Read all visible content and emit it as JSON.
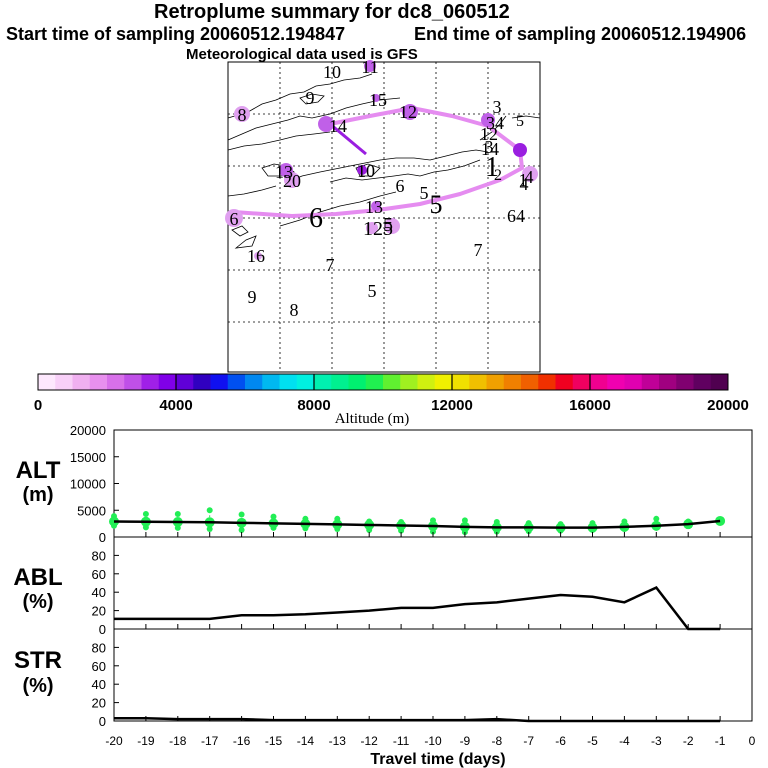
{
  "header": {
    "title": "Retroplume summary for dc8_060512",
    "start_time": "Start time of sampling 20060512.194847",
    "end_time": "End time of sampling 20060512.194906",
    "met_data": "Meteorological data used is GFS"
  },
  "colors": {
    "plume_line": "#e58cf0",
    "plume_dot_light": "#e0a0f0",
    "plume_dot_mid": "#c060e8",
    "plume_dot_dark": "#9a1ee0",
    "alt_points": "#22ee55",
    "series_line": "#000000",
    "map_lines": "#000000"
  },
  "colorbar": {
    "ticks": [
      "0",
      "4000",
      "8000",
      "12000",
      "16000",
      "20000"
    ],
    "tick_values": [
      0,
      4000,
      8000,
      12000,
      16000,
      20000
    ],
    "label": "Altitude (m)",
    "swatches": [
      "#fde8fd",
      "#f8d0f8",
      "#f0b0f0",
      "#e890ee",
      "#d870ea",
      "#c050e8",
      "#a020e8",
      "#8000e8",
      "#6000d8",
      "#3000c0",
      "#1010f0",
      "#0050f0",
      "#0088f0",
      "#00b8f0",
      "#00e0f0",
      "#00f0e0",
      "#00f0b0",
      "#00f090",
      "#00f070",
      "#20f050",
      "#60f030",
      "#a0f020",
      "#d0f010",
      "#f0f000",
      "#f0e000",
      "#f0c000",
      "#f0a000",
      "#f08000",
      "#f06000",
      "#f03000",
      "#f00020",
      "#f00060",
      "#f00090",
      "#f000b0",
      "#e000b0",
      "#c00098",
      "#a00080",
      "#800070",
      "#600060",
      "#500050"
    ]
  },
  "map": {
    "day_labels": [
      {
        "text": "10"
      },
      {
        "text": "11"
      },
      {
        "text": "9"
      },
      {
        "text": "8"
      },
      {
        "text": "15"
      },
      {
        "text": "12"
      },
      {
        "text": "14"
      },
      {
        "text": "3"
      },
      {
        "text": "34"
      },
      {
        "text": "5"
      },
      {
        "text": "12"
      },
      {
        "text": "14"
      },
      {
        "text": "3"
      },
      {
        "text": "2"
      },
      {
        "text": "1"
      },
      {
        "text": "1"
      },
      {
        "text": "13"
      },
      {
        "text": "20"
      },
      {
        "text": "10"
      },
      {
        "text": "6"
      },
      {
        "text": "5"
      },
      {
        "text": "4"
      },
      {
        "text": "4"
      },
      {
        "text": "5"
      },
      {
        "text": "13"
      },
      {
        "text": "5"
      },
      {
        "text": "6"
      },
      {
        "text": "6"
      },
      {
        "text": "64"
      },
      {
        "text": "125"
      },
      {
        "text": "7"
      },
      {
        "text": "16"
      },
      {
        "text": "7"
      },
      {
        "text": "9"
      },
      {
        "text": "8"
      },
      {
        "text": "5"
      }
    ]
  },
  "chart_data": [
    {
      "type": "scatter",
      "title": "ALT (m)",
      "ylabel": "ALT (m)",
      "ylim": [
        0,
        20000
      ],
      "yticks": [
        "0",
        "5000",
        "10000",
        "15000",
        "20000"
      ],
      "ytick_values": [
        0,
        5000,
        10000,
        15000,
        20000
      ],
      "x": [
        -20,
        -19,
        -18,
        -17,
        -16,
        -15,
        -14,
        -13,
        -12,
        -11,
        -10,
        -9,
        -8,
        -7,
        -6,
        -5,
        -4,
        -3,
        -2,
        -1
      ],
      "median": [
        2900,
        2850,
        2800,
        2750,
        2650,
        2550,
        2450,
        2350,
        2250,
        2150,
        2050,
        1900,
        1800,
        1800,
        1750,
        1750,
        1900,
        2100,
        2400,
        3000
      ],
      "low": [
        2100,
        1800,
        1700,
        1500,
        1300,
        1700,
        1600,
        1500,
        1300,
        1200,
        1000,
        900,
        1000,
        1100,
        1200,
        1300,
        1500,
        1700,
        2100,
        2700
      ],
      "high": [
        3900,
        4300,
        4300,
        5000,
        4200,
        3800,
        3400,
        3400,
        2900,
        2800,
        3100,
        3100,
        2800,
        2600,
        2400,
        2600,
        2900,
        3400,
        2900,
        3200
      ]
    },
    {
      "type": "line",
      "title": "ABL (%)",
      "ylabel": "ABL (%)",
      "ylim": [
        0,
        100
      ],
      "yticks": [
        "0",
        "20",
        "40",
        "60",
        "80"
      ],
      "ytick_values": [
        0,
        20,
        40,
        60,
        80
      ],
      "x": [
        -20,
        -19,
        -18,
        -17,
        -16,
        -15,
        -14,
        -13,
        -12,
        -11,
        -10,
        -9,
        -8,
        -7,
        -6,
        -5,
        -4,
        -3,
        -2,
        -1
      ],
      "values": [
        11,
        11,
        11,
        11,
        15,
        15,
        16,
        18,
        20,
        23,
        23,
        27,
        29,
        33,
        37,
        35,
        29,
        45,
        0,
        0
      ]
    },
    {
      "type": "line",
      "title": "STR (%)",
      "ylabel": "STR (%)",
      "ylim": [
        0,
        100
      ],
      "yticks": [
        "0",
        "20",
        "40",
        "60",
        "80"
      ],
      "ytick_values": [
        0,
        20,
        40,
        60,
        80
      ],
      "xlabel": "Travel time (days)",
      "xlim": [
        -20,
        0
      ],
      "xticks": [
        "-20",
        "-19",
        "-18",
        "-17",
        "-16",
        "-15",
        "-14",
        "-13",
        "-12",
        "-11",
        "-10",
        "-9",
        "-8",
        "-7",
        "-6",
        "-5",
        "-4",
        "-3",
        "-2",
        "-1",
        "0"
      ],
      "xtick_values": [
        -20,
        -19,
        -18,
        -17,
        -16,
        -15,
        -14,
        -13,
        -12,
        -11,
        -10,
        -9,
        -8,
        -7,
        -6,
        -5,
        -4,
        -3,
        -2,
        -1,
        0
      ],
      "x": [
        -20,
        -19,
        -18,
        -17,
        -16,
        -15,
        -14,
        -13,
        -12,
        -11,
        -10,
        -9,
        -8,
        -7,
        -6,
        -5,
        -4,
        -3,
        -2,
        -1
      ],
      "values": [
        3,
        3,
        2,
        2,
        2,
        1,
        1,
        1,
        1,
        1,
        1,
        1,
        2,
        0,
        0,
        0,
        0,
        0,
        0,
        0
      ]
    }
  ]
}
